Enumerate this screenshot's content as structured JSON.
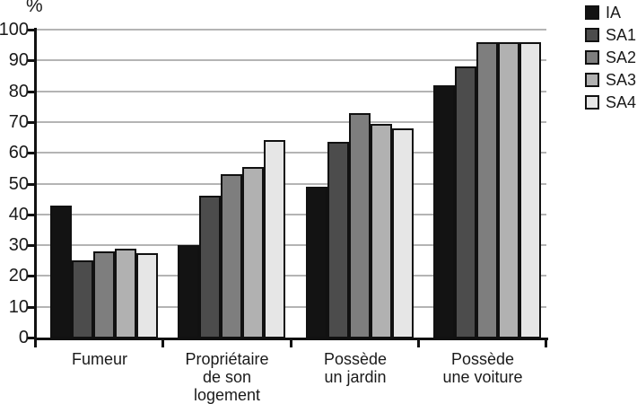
{
  "chart_data": {
    "type": "bar",
    "title": "",
    "xlabel": "",
    "ylabel": "%",
    "ylim": [
      0,
      100
    ],
    "y_ticks": [
      0,
      10,
      20,
      30,
      40,
      50,
      60,
      70,
      80,
      90,
      100
    ],
    "grid": "horizontal",
    "legend_position": "top-right",
    "categories": [
      "Fumeur",
      "Propriétaire de son logement",
      "Possède un jardin",
      "Possède une voiture"
    ],
    "category_label_lines": [
      [
        "Fumeur"
      ],
      [
        "Propriétaire",
        "de son",
        "logement"
      ],
      [
        "Possède",
        "un jardin"
      ],
      [
        "Possède",
        "une voiture"
      ]
    ],
    "series": [
      {
        "name": "IA",
        "color": "#131313",
        "values": [
          43,
          30,
          49,
          82
        ]
      },
      {
        "name": "SA1",
        "color": "#4c4c4c",
        "values": [
          25,
          46,
          63.5,
          88
        ]
      },
      {
        "name": "SA2",
        "color": "#7e7e7e",
        "values": [
          28,
          53,
          73,
          96
        ]
      },
      {
        "name": "SA3",
        "color": "#b1b1b1",
        "values": [
          29,
          55.5,
          69.5,
          96
        ]
      },
      {
        "name": "SA4",
        "color": "#e6e6e6",
        "values": [
          27.5,
          64,
          68,
          96
        ]
      }
    ]
  },
  "colors": {
    "axis": "#111111",
    "grid": "#b4b4b4",
    "text": "#1a1a1a",
    "background": "#ffffff"
  }
}
